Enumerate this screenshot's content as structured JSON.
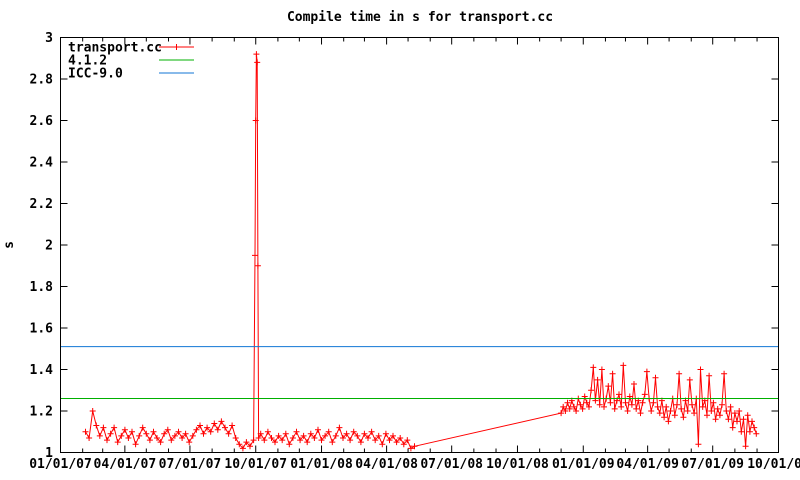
{
  "chart_data": {
    "type": "line",
    "title": "Compile time in s for transport.cc",
    "ylabel": "s",
    "ylim": [
      1,
      3
    ],
    "x_range": [
      0,
      1004
    ],
    "grid": false,
    "legend_position": "top-left-inside",
    "colors": {
      "axis": "#000000",
      "background": "#ffffff"
    },
    "y_tick_values": [
      1,
      1.2,
      1.4,
      1.6,
      1.8,
      2,
      2.2,
      2.4,
      2.6,
      2.8,
      3
    ],
    "y_tick_labels": [
      "1",
      "1.2",
      "1.4",
      "1.6",
      "1.8",
      "2",
      "2.2",
      "2.4",
      "2.6",
      "2.8",
      "3"
    ],
    "x_tick_days": [
      0,
      90,
      181,
      273,
      365,
      456,
      547,
      639,
      731,
      821,
      912,
      1004
    ],
    "x_tick_labels": [
      "01/01/07",
      "04/01/07",
      "07/01/07",
      "10/01/07",
      "01/01/08",
      "04/01/08",
      "07/01/08",
      "10/01/08",
      "01/01/09",
      "04/01/09",
      "07/01/09",
      "10/01/09"
    ],
    "x_minor_tick_days": [
      31,
      59,
      120,
      151,
      212,
      243,
      304,
      334,
      396,
      425,
      486,
      517,
      578,
      609,
      670,
      700,
      762,
      790,
      851,
      882,
      943,
      974
    ],
    "series": [
      {
        "name": "transport.cc",
        "color": "#ff0000",
        "style": "linespoints",
        "marker": "plus",
        "points": [
          [
            35,
            1.1
          ],
          [
            40,
            1.07
          ],
          [
            45,
            1.2
          ],
          [
            50,
            1.13
          ],
          [
            55,
            1.08
          ],
          [
            60,
            1.12
          ],
          [
            65,
            1.06
          ],
          [
            70,
            1.09
          ],
          [
            75,
            1.12
          ],
          [
            80,
            1.05
          ],
          [
            85,
            1.08
          ],
          [
            90,
            1.11
          ],
          [
            95,
            1.07
          ],
          [
            100,
            1.1
          ],
          [
            105,
            1.04
          ],
          [
            110,
            1.08
          ],
          [
            115,
            1.12
          ],
          [
            120,
            1.09
          ],
          [
            125,
            1.06
          ],
          [
            130,
            1.1
          ],
          [
            135,
            1.07
          ],
          [
            140,
            1.05
          ],
          [
            145,
            1.09
          ],
          [
            150,
            1.11
          ],
          [
            155,
            1.06
          ],
          [
            160,
            1.08
          ],
          [
            165,
            1.1
          ],
          [
            170,
            1.07
          ],
          [
            175,
            1.09
          ],
          [
            180,
            1.05
          ],
          [
            185,
            1.08
          ],
          [
            190,
            1.11
          ],
          [
            195,
            1.13
          ],
          [
            200,
            1.09
          ],
          [
            205,
            1.12
          ],
          [
            210,
            1.1
          ],
          [
            215,
            1.14
          ],
          [
            220,
            1.11
          ],
          [
            225,
            1.15
          ],
          [
            230,
            1.12
          ],
          [
            235,
            1.09
          ],
          [
            240,
            1.13
          ],
          [
            245,
            1.07
          ],
          [
            250,
            1.04
          ],
          [
            255,
            1.02
          ],
          [
            260,
            1.05
          ],
          [
            265,
            1.03
          ],
          [
            270,
            1.06
          ],
          [
            272,
            1.95
          ],
          [
            273,
            2.6
          ],
          [
            274,
            2.92
          ],
          [
            275,
            2.88
          ],
          [
            276,
            1.9
          ],
          [
            277,
            1.07
          ],
          [
            280,
            1.09
          ],
          [
            285,
            1.06
          ],
          [
            290,
            1.1
          ],
          [
            295,
            1.07
          ],
          [
            300,
            1.05
          ],
          [
            305,
            1.08
          ],
          [
            310,
            1.06
          ],
          [
            315,
            1.09
          ],
          [
            320,
            1.04
          ],
          [
            325,
            1.07
          ],
          [
            330,
            1.1
          ],
          [
            335,
            1.06
          ],
          [
            340,
            1.08
          ],
          [
            345,
            1.05
          ],
          [
            350,
            1.09
          ],
          [
            355,
            1.07
          ],
          [
            360,
            1.11
          ],
          [
            365,
            1.06
          ],
          [
            370,
            1.08
          ],
          [
            375,
            1.1
          ],
          [
            380,
            1.05
          ],
          [
            385,
            1.08
          ],
          [
            390,
            1.12
          ],
          [
            395,
            1.07
          ],
          [
            400,
            1.09
          ],
          [
            405,
            1.06
          ],
          [
            410,
            1.1
          ],
          [
            415,
            1.08
          ],
          [
            420,
            1.05
          ],
          [
            425,
            1.09
          ],
          [
            430,
            1.07
          ],
          [
            435,
            1.1
          ],
          [
            440,
            1.06
          ],
          [
            445,
            1.08
          ],
          [
            450,
            1.04
          ],
          [
            455,
            1.09
          ],
          [
            460,
            1.06
          ],
          [
            465,
            1.08
          ],
          [
            470,
            1.05
          ],
          [
            475,
            1.07
          ],
          [
            480,
            1.04
          ],
          [
            485,
            1.06
          ],
          [
            490,
            1.02
          ],
          [
            495,
            1.03
          ],
          [
            700,
            1.19
          ],
          [
            703,
            1.22
          ],
          [
            706,
            1.2
          ],
          [
            709,
            1.24
          ],
          [
            712,
            1.21
          ],
          [
            715,
            1.25
          ],
          [
            718,
            1.22
          ],
          [
            721,
            1.2
          ],
          [
            724,
            1.26
          ],
          [
            727,
            1.23
          ],
          [
            730,
            1.21
          ],
          [
            733,
            1.27
          ],
          [
            736,
            1.24
          ],
          [
            739,
            1.22
          ],
          [
            742,
            1.3
          ],
          [
            745,
            1.41
          ],
          [
            748,
            1.25
          ],
          [
            751,
            1.35
          ],
          [
            754,
            1.23
          ],
          [
            757,
            1.4
          ],
          [
            760,
            1.22
          ],
          [
            763,
            1.26
          ],
          [
            766,
            1.32
          ],
          [
            769,
            1.24
          ],
          [
            772,
            1.38
          ],
          [
            775,
            1.21
          ],
          [
            778,
            1.25
          ],
          [
            781,
            1.28
          ],
          [
            784,
            1.22
          ],
          [
            787,
            1.42
          ],
          [
            790,
            1.24
          ],
          [
            793,
            1.2
          ],
          [
            796,
            1.27
          ],
          [
            799,
            1.23
          ],
          [
            802,
            1.33
          ],
          [
            805,
            1.21
          ],
          [
            808,
            1.25
          ],
          [
            811,
            1.19
          ],
          [
            814,
            1.24
          ],
          [
            817,
            1.28
          ],
          [
            820,
            1.39
          ],
          [
            823,
            1.26
          ],
          [
            826,
            1.2
          ],
          [
            829,
            1.24
          ],
          [
            832,
            1.36
          ],
          [
            835,
            1.22
          ],
          [
            838,
            1.19
          ],
          [
            841,
            1.25
          ],
          [
            844,
            1.17
          ],
          [
            847,
            1.22
          ],
          [
            850,
            1.15
          ],
          [
            853,
            1.2
          ],
          [
            856,
            1.26
          ],
          [
            859,
            1.18
          ],
          [
            862,
            1.23
          ],
          [
            865,
            1.38
          ],
          [
            868,
            1.21
          ],
          [
            871,
            1.17
          ],
          [
            874,
            1.25
          ],
          [
            877,
            1.2
          ],
          [
            880,
            1.35
          ],
          [
            883,
            1.23
          ],
          [
            886,
            1.19
          ],
          [
            889,
            1.26
          ],
          [
            892,
            1.04
          ],
          [
            895,
            1.4
          ],
          [
            898,
            1.22
          ],
          [
            901,
            1.25
          ],
          [
            904,
            1.18
          ],
          [
            907,
            1.37
          ],
          [
            910,
            1.2
          ],
          [
            913,
            1.24
          ],
          [
            916,
            1.16
          ],
          [
            919,
            1.21
          ],
          [
            922,
            1.18
          ],
          [
            925,
            1.23
          ],
          [
            928,
            1.38
          ],
          [
            931,
            1.2
          ],
          [
            934,
            1.16
          ],
          [
            937,
            1.22
          ],
          [
            940,
            1.12
          ],
          [
            943,
            1.19
          ],
          [
            946,
            1.15
          ],
          [
            949,
            1.2
          ],
          [
            952,
            1.1
          ],
          [
            955,
            1.16
          ],
          [
            958,
            1.03
          ],
          [
            961,
            1.18
          ],
          [
            964,
            1.1
          ],
          [
            967,
            1.15
          ],
          [
            970,
            1.12
          ],
          [
            973,
            1.09
          ]
        ]
      },
      {
        "name": "4.1.2",
        "color": "#00b000",
        "style": "hline",
        "value": 1.26
      },
      {
        "name": "ICC-9.0",
        "color": "#1076d4",
        "style": "hline",
        "value": 1.51
      }
    ]
  }
}
